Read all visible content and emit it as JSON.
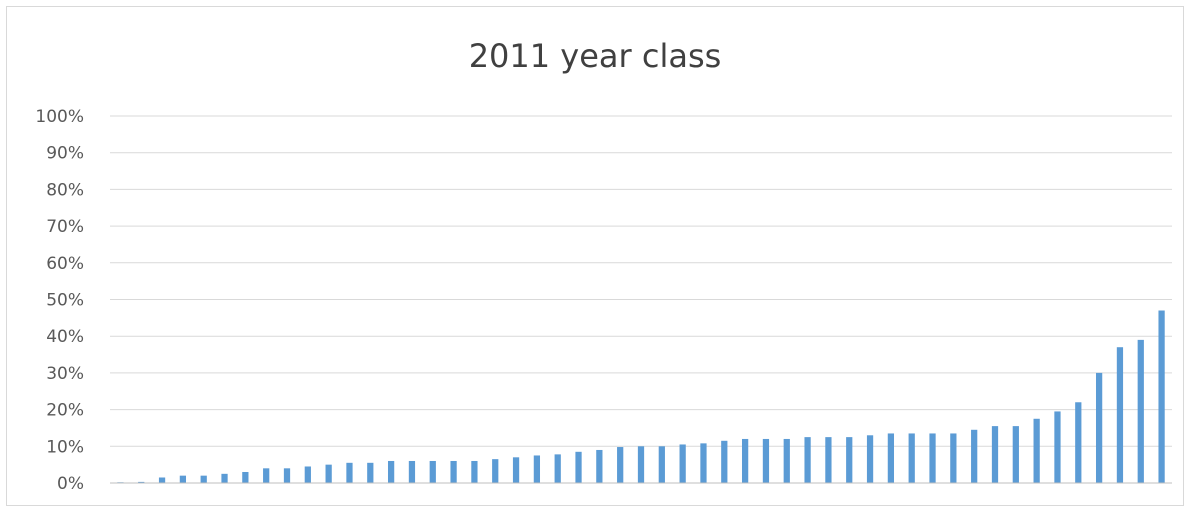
{
  "chart_data": {
    "type": "bar",
    "title": "2011 year class",
    "xlabel": "",
    "ylabel": "",
    "ylim": [
      0,
      100
    ],
    "y_ticks": [
      "0%",
      "10%",
      "20%",
      "30%",
      "40%",
      "50%",
      "60%",
      "70%",
      "80%",
      "90%",
      "100%"
    ],
    "grid": true,
    "legend": "none",
    "bar_color": "#5b9bd5",
    "values": [
      0.2,
      0.3,
      1.5,
      2,
      2,
      2.5,
      3,
      4,
      4,
      4.5,
      5,
      5.5,
      5.5,
      6,
      6,
      6,
      6,
      6,
      6.5,
      7,
      7.5,
      7.8,
      8.5,
      9,
      9.8,
      10,
      10,
      10.5,
      10.8,
      11.5,
      12,
      12,
      12,
      12.5,
      12.5,
      12.5,
      13,
      13.5,
      13.5,
      13.5,
      13.5,
      14.5,
      15.5,
      15.5,
      17.5,
      19.5,
      22,
      30,
      37,
      39,
      47
    ]
  }
}
